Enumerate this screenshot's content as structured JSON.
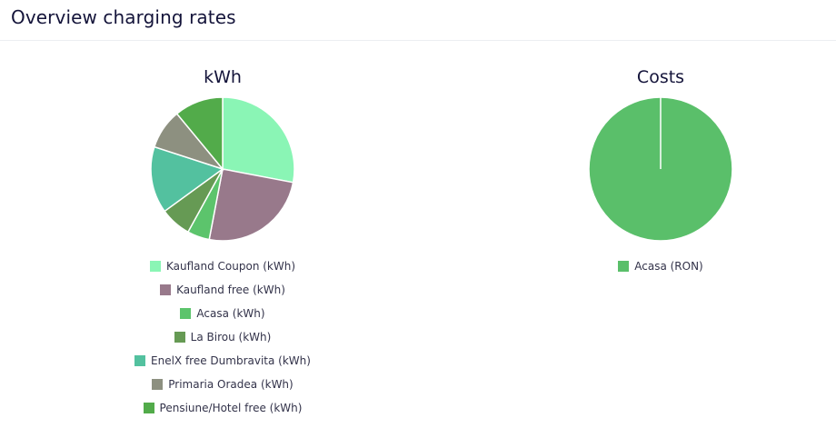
{
  "header": {
    "title": "Overview charging rates"
  },
  "chart_data": [
    {
      "type": "pie",
      "title": "kWh",
      "series": [
        {
          "name": "Kaufland Coupon (kWh)",
          "value": 28,
          "color": "#8af5b5"
        },
        {
          "name": "Kaufland free (kWh)",
          "value": 25,
          "color": "#98798b"
        },
        {
          "name": "Acasa (kWh)",
          "value": 5,
          "color": "#5cc46c"
        },
        {
          "name": "La Birou (kWh)",
          "value": 7,
          "color": "#669a54"
        },
        {
          "name": "EnelX free Dumbravita (kWh)",
          "value": 15,
          "color": "#53c19f"
        },
        {
          "name": "Primaria Oradea (kWh)",
          "value": 9,
          "color": "#8d9080"
        },
        {
          "name": "Pensiune/Hotel free (kWh)",
          "value": 11,
          "color": "#52ab4a"
        }
      ],
      "legend_position": "bottom"
    },
    {
      "type": "pie",
      "title": "Costs",
      "series": [
        {
          "name": "Acasa (RON)",
          "value": 100,
          "color": "#5abf6a"
        }
      ],
      "legend_position": "bottom"
    }
  ]
}
